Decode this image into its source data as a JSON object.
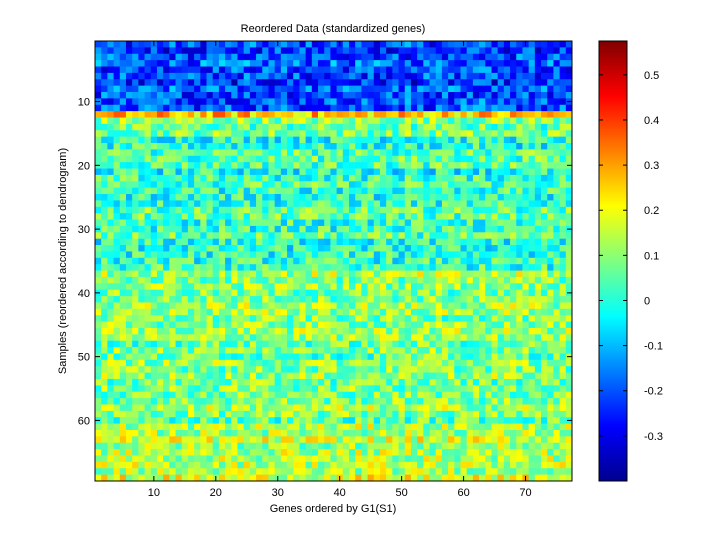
{
  "chart_data": {
    "type": "heatmap",
    "title": "Reordered Data (standardized genes)",
    "xlabel": "Genes ordered by G1(S1)",
    "ylabel": "Samples (reordered according to dendrogram)",
    "n_genes": 77,
    "n_samples": 69,
    "xlim": [
      0.5,
      77.5
    ],
    "ylim": [
      0.5,
      69.5
    ],
    "x_ticks": [
      10,
      20,
      30,
      40,
      50,
      60,
      70
    ],
    "y_ticks": [
      10,
      20,
      30,
      40,
      50,
      60
    ],
    "colormap": "jet",
    "clim": [
      -0.4,
      0.575
    ],
    "colorbar_ticks": [
      0.5,
      0.4,
      0.3,
      0.2,
      0.1,
      0,
      -0.1,
      -0.2,
      -0.3
    ],
    "colorbar_tick_labels": [
      "0.5",
      "0.4",
      "0.3",
      "0.2",
      "0.1",
      "0",
      "-0.1",
      "-0.2",
      "-0.3"
    ],
    "row_block_means": [
      {
        "rows": [
          1,
          11
        ],
        "mean": -0.22
      },
      {
        "rows": [
          12,
          12
        ],
        "mean": 0.28
      },
      {
        "rows": [
          13,
          15
        ],
        "mean": 0.08
      },
      {
        "rows": [
          16,
          36
        ],
        "mean": 0.02
      },
      {
        "rows": [
          37,
          60
        ],
        "mean": 0.09
      },
      {
        "rows": [
          61,
          69
        ],
        "mean": 0.15
      }
    ]
  }
}
